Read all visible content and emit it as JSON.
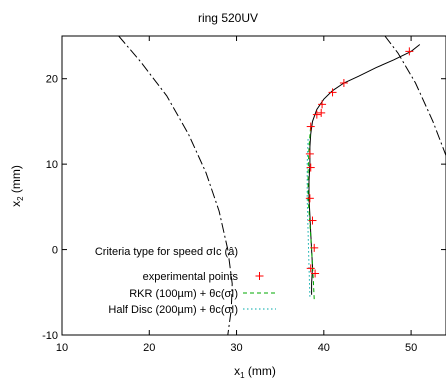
{
  "chart_data": {
    "type": "line",
    "title": "ring 520UV",
    "xlabel": "x₁ (mm)",
    "ylabel": "x₂ (mm)",
    "xlim": [
      10,
      54
    ],
    "ylim": [
      -10,
      25
    ],
    "grid": false,
    "x_ticks": [
      10,
      20,
      30,
      40,
      50
    ],
    "y_ticks": [
      -10,
      0,
      10,
      20
    ],
    "legend_placement": "left",
    "legend": {
      "header_text": "Criteria type for speed",
      "header_math": "σIc (â)",
      "entries": [
        {
          "text": "experimental points",
          "math": ""
        },
        {
          "text": "RKR (100µm)",
          "math": "+ θc(σI)"
        },
        {
          "text": "Half Disc (200µm)",
          "math": "+ θc(σI)"
        }
      ]
    },
    "series": [
      {
        "style": "solid",
        "color": "#000000",
        "points": [
          [
            38.6,
            -5.3
          ],
          [
            38.6,
            -4.0
          ],
          [
            38.7,
            -2.0
          ],
          [
            38.6,
            0.0
          ],
          [
            38.5,
            2.0
          ],
          [
            38.4,
            4.0
          ],
          [
            38.3,
            6.0
          ],
          [
            38.3,
            8.0
          ],
          [
            38.4,
            10.0
          ],
          [
            38.4,
            12.0
          ],
          [
            38.5,
            13.5
          ],
          [
            38.7,
            15.0
          ],
          [
            39.2,
            16.4
          ],
          [
            40.0,
            17.6
          ],
          [
            41.0,
            18.6
          ],
          [
            42.3,
            19.5
          ],
          [
            44.0,
            20.3
          ],
          [
            46.0,
            21.3
          ],
          [
            48.0,
            22.2
          ],
          [
            50.0,
            23.2
          ],
          [
            51.0,
            24.0
          ]
        ]
      },
      {
        "name": "RKR (100µm)",
        "style": "dashed",
        "color": "#00aa00",
        "points": [
          [
            38.9,
            -5.8
          ],
          [
            38.8,
            -3.5
          ],
          [
            38.6,
            0.0
          ],
          [
            38.4,
            3.0
          ],
          [
            38.2,
            6.0
          ],
          [
            38.2,
            9.0
          ],
          [
            38.3,
            12.0
          ],
          [
            38.5,
            14.5
          ]
        ]
      },
      {
        "name": "Half Disc (200µm)",
        "style": "dotted",
        "color": "#00aaaa",
        "points": [
          [
            38.4,
            -5.5
          ],
          [
            38.3,
            -2.0
          ],
          [
            38.2,
            2.0
          ],
          [
            38.1,
            6.0
          ],
          [
            38.1,
            10.0
          ],
          [
            38.2,
            13.0
          ]
        ]
      }
    ],
    "boundaries": [
      {
        "style": "dash-dot",
        "color": "#000000",
        "points": [
          [
            16.5,
            25.0
          ],
          [
            19.0,
            22.0
          ],
          [
            22.0,
            18.0
          ],
          [
            24.5,
            13.5
          ],
          [
            26.5,
            9.0
          ],
          [
            28.0,
            4.5
          ],
          [
            29.0,
            0.0
          ],
          [
            29.5,
            -4.0
          ],
          [
            29.4,
            -7.0
          ],
          [
            29.0,
            -10.0
          ]
        ]
      },
      {
        "style": "dash-dot",
        "color": "#000000",
        "points": [
          [
            47.0,
            25.0
          ],
          [
            48.5,
            23.0
          ],
          [
            50.5,
            19.5
          ],
          [
            52.5,
            15.0
          ],
          [
            54.0,
            11.0
          ]
        ]
      }
    ],
    "experimental_points": {
      "name": "experimental points",
      "color": "#ff0000",
      "marker": "+",
      "points": [
        [
          38.5,
          -2.2
        ],
        [
          39.0,
          -2.8
        ],
        [
          38.9,
          0.2
        ],
        [
          38.7,
          3.4
        ],
        [
          38.4,
          6.0
        ],
        [
          38.5,
          9.6
        ],
        [
          38.4,
          11.2
        ],
        [
          38.5,
          14.4
        ],
        [
          39.2,
          15.8
        ],
        [
          39.7,
          16.0
        ],
        [
          39.8,
          17.0
        ],
        [
          41.0,
          18.4
        ],
        [
          42.3,
          19.5
        ],
        [
          49.8,
          23.2
        ]
      ]
    }
  }
}
